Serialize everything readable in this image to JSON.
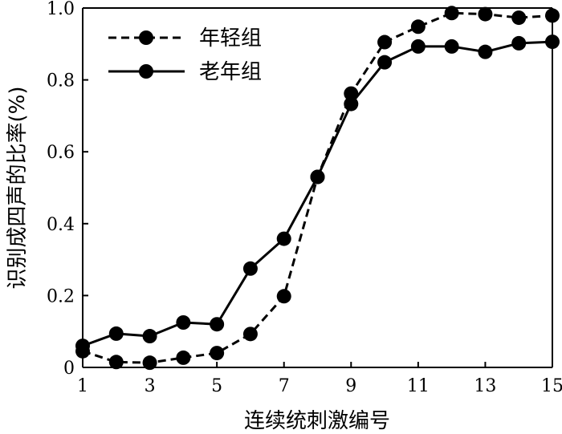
{
  "chart_data": {
    "type": "line",
    "xlabel": "连续统刺激编号",
    "ylabel": "识别成四声的比率(%)",
    "xlim": [
      1,
      15
    ],
    "ylim": [
      0,
      1.0
    ],
    "xticks": [
      "1",
      "3",
      "5",
      "7",
      "9",
      "11",
      "13",
      "15"
    ],
    "yticks": [
      "0",
      "0.2",
      "0.4",
      "0.6",
      "0.8",
      "1.0"
    ],
    "grid": false,
    "legend_position": "top-left",
    "x": [
      1,
      2,
      3,
      4,
      5,
      6,
      7,
      8,
      9,
      10,
      11,
      12,
      13,
      14,
      15
    ],
    "series": [
      {
        "name": "年轻组",
        "line_style": "dashed",
        "values": [
          0.045,
          0.015,
          0.013,
          0.027,
          0.04,
          0.093,
          0.198,
          0.53,
          0.762,
          0.905,
          0.948,
          0.986,
          0.983,
          0.973,
          0.979
        ]
      },
      {
        "name": "老年组",
        "line_style": "solid",
        "values": [
          0.06,
          0.094,
          0.087,
          0.125,
          0.12,
          0.275,
          0.358,
          0.53,
          0.733,
          0.849,
          0.893,
          0.893,
          0.878,
          0.902,
          0.906
        ]
      }
    ]
  }
}
